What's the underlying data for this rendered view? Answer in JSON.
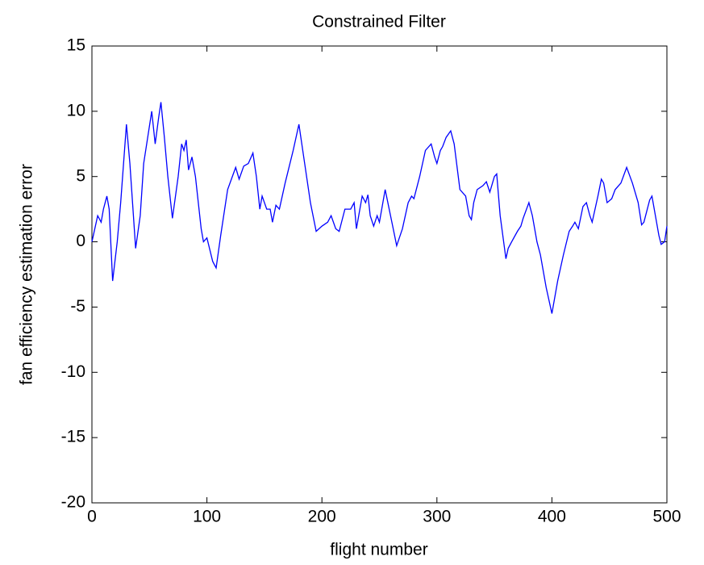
{
  "chart_data": {
    "type": "line",
    "title": "Constrained Filter",
    "x_label": "flight number",
    "y_label": "fan efficiency estimation error",
    "xlim": [
      0,
      500
    ],
    "ylim": [
      -20,
      15
    ],
    "xticks": [
      0,
      100,
      200,
      300,
      400,
      500
    ],
    "yticks": [
      -20,
      -15,
      -10,
      -5,
      0,
      5,
      10,
      15
    ],
    "grid": false,
    "series": [
      {
        "color": "#0000ff",
        "x": [
          0,
          5,
          8,
          10,
          13,
          15,
          18,
          22,
          25,
          30,
          33,
          38,
          42,
          45,
          52,
          55,
          58,
          60,
          63,
          66,
          70,
          75,
          78,
          80,
          82,
          84,
          87,
          90,
          95,
          97,
          100,
          105,
          108,
          112,
          118,
          125,
          128,
          132,
          136,
          140,
          143,
          146,
          148,
          152,
          155,
          157,
          160,
          163,
          168,
          175,
          180,
          185,
          190,
          195,
          200,
          205,
          208,
          212,
          215,
          220,
          225,
          228,
          230,
          233,
          235,
          238,
          240,
          242,
          245,
          248,
          250,
          255,
          262,
          265,
          270,
          275,
          278,
          280,
          285,
          290,
          295,
          298,
          300,
          303,
          305,
          308,
          312,
          315,
          320,
          325,
          328,
          330,
          332,
          335,
          340,
          343,
          346,
          350,
          352,
          355,
          360,
          362,
          365,
          370,
          373,
          375,
          380,
          383,
          387,
          390,
          395,
          400,
          405,
          410,
          415,
          418,
          420,
          423,
          427,
          430,
          433,
          435,
          440,
          443,
          445,
          448,
          452,
          455,
          460,
          465,
          470,
          475,
          478,
          480,
          485,
          487,
          490,
          493,
          495,
          498,
          500
        ],
        "values": [
          0,
          2,
          1.5,
          2.5,
          3.5,
          2.5,
          -3,
          0,
          3,
          9,
          6,
          -0.5,
          2,
          6,
          10,
          7.5,
          9.5,
          10.7,
          8,
          5,
          1.8,
          5,
          7.5,
          7,
          7.8,
          5.5,
          6.5,
          5,
          1,
          0,
          0.3,
          -1.5,
          -2,
          0.5,
          4,
          5.7,
          4.8,
          5.8,
          6,
          6.8,
          5,
          2.5,
          3.5,
          2.5,
          2.5,
          1.5,
          2.8,
          2.5,
          4.5,
          7,
          9,
          6,
          3,
          0.8,
          1.2,
          1.5,
          2,
          1,
          0.8,
          2.5,
          2.5,
          3,
          1,
          2.5,
          3.5,
          3,
          3.6,
          2,
          1.2,
          2,
          1.5,
          4,
          1,
          -0.3,
          1,
          3,
          3.5,
          3.3,
          5,
          7,
          7.5,
          6.5,
          6,
          7,
          7.3,
          8,
          8.5,
          7.5,
          4,
          3.5,
          2,
          1.7,
          3,
          4,
          4.3,
          4.6,
          3.8,
          5,
          5.2,
          2,
          -1.3,
          -0.5,
          0,
          0.8,
          1.2,
          1.8,
          3,
          2,
          0,
          -1,
          -3.5,
          -5.5,
          -3,
          -1,
          0.8,
          1.2,
          1.5,
          1,
          2.7,
          3,
          2,
          1.5,
          3.5,
          4.8,
          4.5,
          3,
          3.3,
          4,
          4.5,
          5.7,
          4.5,
          3,
          1.3,
          1.5,
          3.2,
          3.5,
          2,
          0.5,
          -0.2,
          0,
          1.2
        ]
      }
    ]
  }
}
